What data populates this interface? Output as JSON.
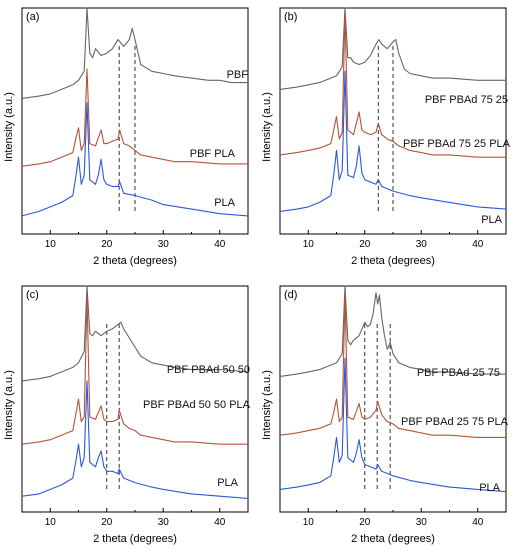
{
  "chart_data": [
    {
      "panel": "(a)",
      "type": "line",
      "xlabel": "2 theta (degrees)",
      "ylabel": "Intensity (a.u.)",
      "xlim": [
        5,
        45
      ],
      "xticks": [
        10,
        20,
        30,
        40
      ],
      "dashed_lines_x": [
        22.2,
        25.0
      ],
      "series": [
        {
          "name": "PBF",
          "color": "#666666",
          "x": [
            5,
            8,
            10,
            12,
            14,
            15,
            16,
            16.5,
            17,
            17.5,
            18,
            19,
            20,
            21,
            22,
            23,
            24,
            24.5,
            25,
            26,
            28,
            30,
            32,
            35,
            38,
            40,
            42,
            45
          ],
          "y": [
            0.6,
            0.61,
            0.62,
            0.64,
            0.66,
            0.68,
            0.72,
            1.0,
            0.8,
            0.78,
            0.82,
            0.79,
            0.8,
            0.82,
            0.86,
            0.83,
            0.86,
            0.91,
            0.86,
            0.75,
            0.72,
            0.71,
            0.7,
            0.69,
            0.68,
            0.68,
            0.67,
            0.67
          ]
        },
        {
          "name": "PBF PLA",
          "color": "#b5533a",
          "x": [
            5,
            8,
            10,
            12,
            14,
            14.5,
            15,
            15.5,
            16,
            16.5,
            17,
            18,
            19,
            19.5,
            20,
            21,
            22,
            22.3,
            23,
            24,
            25,
            26,
            28,
            30,
            32,
            35,
            40,
            45
          ],
          "y": [
            0.3,
            0.31,
            0.32,
            0.34,
            0.36,
            0.42,
            0.47,
            0.37,
            0.4,
            0.73,
            0.4,
            0.39,
            0.46,
            0.4,
            0.4,
            0.41,
            0.42,
            0.46,
            0.4,
            0.39,
            0.37,
            0.35,
            0.34,
            0.33,
            0.32,
            0.32,
            0.31,
            0.31
          ]
        },
        {
          "name": "PLA",
          "color": "#2a5ad6",
          "x": [
            5,
            8,
            10,
            12,
            14,
            14.5,
            15,
            15.5,
            16,
            16.5,
            17,
            18,
            18.5,
            19,
            19.5,
            20,
            21,
            22,
            22.3,
            23,
            25,
            28,
            30,
            35,
            40,
            45
          ],
          "y": [
            0.08,
            0.1,
            0.12,
            0.14,
            0.17,
            0.25,
            0.34,
            0.22,
            0.26,
            0.58,
            0.24,
            0.22,
            0.26,
            0.33,
            0.24,
            0.22,
            0.21,
            0.21,
            0.23,
            0.18,
            0.17,
            0.15,
            0.13,
            0.11,
            0.09,
            0.08
          ]
        }
      ]
    },
    {
      "panel": "(b)",
      "type": "line",
      "xlabel": "2 theta (degrees)",
      "ylabel": "Intensity (a.u.)",
      "xlim": [
        5,
        45
      ],
      "xticks": [
        10,
        20,
        30,
        40
      ],
      "dashed_lines_x": [
        22.4,
        25.0
      ],
      "series": [
        {
          "name": "PBF PBAd 75 25",
          "color": "#666666",
          "x": [
            5,
            8,
            10,
            12,
            14,
            15,
            16,
            16.5,
            17,
            17.5,
            18,
            19,
            20,
            21,
            22,
            22.5,
            23,
            24,
            25,
            25.5,
            26,
            27,
            28,
            30,
            32,
            35,
            40,
            45
          ],
          "y": [
            0.64,
            0.65,
            0.66,
            0.67,
            0.69,
            0.7,
            0.74,
            1.0,
            0.78,
            0.78,
            0.76,
            0.75,
            0.76,
            0.79,
            0.84,
            0.86,
            0.84,
            0.82,
            0.85,
            0.86,
            0.8,
            0.73,
            0.71,
            0.7,
            0.69,
            0.69,
            0.68,
            0.68
          ]
        },
        {
          "name": "PBF PBAd 75 25 PLA",
          "color": "#b5533a",
          "x": [
            5,
            8,
            10,
            12,
            14,
            14.5,
            15,
            15.5,
            16,
            16.5,
            17,
            18,
            19,
            19.5,
            20,
            21,
            22,
            22.4,
            23,
            24,
            25,
            26,
            28,
            30,
            32,
            35,
            40,
            45
          ],
          "y": [
            0.35,
            0.36,
            0.37,
            0.38,
            0.4,
            0.46,
            0.52,
            0.42,
            0.45,
            0.98,
            0.46,
            0.44,
            0.54,
            0.46,
            0.45,
            0.44,
            0.45,
            0.49,
            0.44,
            0.42,
            0.41,
            0.39,
            0.37,
            0.36,
            0.35,
            0.35,
            0.34,
            0.34
          ]
        },
        {
          "name": "PLA",
          "color": "#2a5ad6",
          "x": [
            5,
            8,
            10,
            12,
            14,
            14.5,
            15,
            15.5,
            16,
            16.5,
            17,
            18,
            18.5,
            19,
            19.5,
            20,
            21,
            22,
            22.4,
            23,
            25,
            28,
            30,
            35,
            40,
            45
          ],
          "y": [
            0.1,
            0.11,
            0.12,
            0.14,
            0.17,
            0.26,
            0.37,
            0.24,
            0.28,
            0.72,
            0.26,
            0.25,
            0.3,
            0.39,
            0.27,
            0.24,
            0.23,
            0.22,
            0.24,
            0.21,
            0.19,
            0.17,
            0.16,
            0.14,
            0.12,
            0.11
          ]
        }
      ]
    },
    {
      "panel": "(c)",
      "type": "line",
      "xlabel": "2 theta (degrees)",
      "ylabel": "Intensity (a.u.)",
      "xlim": [
        5,
        45
      ],
      "xticks": [
        10,
        20,
        30,
        40
      ],
      "dashed_lines_x": [
        20.0,
        22.2
      ],
      "series": [
        {
          "name": "PBF PBAd 50 50",
          "color": "#666666",
          "x": [
            5,
            8,
            10,
            12,
            14,
            15,
            16,
            16.5,
            17,
            17.5,
            18,
            19,
            20,
            21,
            22,
            22.5,
            23,
            24,
            25,
            26,
            28,
            30,
            32,
            35,
            40,
            45
          ],
          "y": [
            0.58,
            0.59,
            0.6,
            0.62,
            0.64,
            0.66,
            0.71,
            1.0,
            0.79,
            0.78,
            0.8,
            0.78,
            0.8,
            0.81,
            0.83,
            0.84,
            0.81,
            0.77,
            0.73,
            0.69,
            0.66,
            0.65,
            0.64,
            0.63,
            0.63,
            0.62
          ]
        },
        {
          "name": "PBF PBAd 50 50 PLA",
          "color": "#b5533a",
          "x": [
            5,
            8,
            10,
            12,
            14,
            14.5,
            15,
            15.5,
            16,
            16.5,
            17,
            18,
            19,
            19.5,
            20,
            21,
            22,
            22.2,
            23,
            24,
            25,
            26,
            28,
            30,
            32,
            35,
            40,
            45
          ],
          "y": [
            0.3,
            0.31,
            0.32,
            0.34,
            0.36,
            0.43,
            0.5,
            0.4,
            0.42,
            0.95,
            0.42,
            0.41,
            0.47,
            0.41,
            0.4,
            0.4,
            0.41,
            0.45,
            0.39,
            0.37,
            0.36,
            0.34,
            0.33,
            0.32,
            0.31,
            0.31,
            0.3,
            0.3
          ]
        },
        {
          "name": "PLA",
          "color": "#2a5ad6",
          "x": [
            5,
            8,
            10,
            12,
            14,
            14.5,
            15,
            15.5,
            16,
            16.5,
            17,
            18,
            18.5,
            19,
            19.5,
            20,
            21,
            22,
            22.2,
            23,
            25,
            28,
            30,
            35,
            40,
            45
          ],
          "y": [
            0.07,
            0.08,
            0.1,
            0.12,
            0.15,
            0.22,
            0.3,
            0.2,
            0.24,
            0.58,
            0.22,
            0.2,
            0.24,
            0.27,
            0.2,
            0.18,
            0.18,
            0.17,
            0.19,
            0.15,
            0.13,
            0.11,
            0.1,
            0.08,
            0.07,
            0.06
          ]
        }
      ]
    },
    {
      "panel": "(d)",
      "type": "line",
      "xlabel": "2 theta (degrees)",
      "ylabel": "Intensity (a.u.)",
      "xlim": [
        5,
        45
      ],
      "xticks": [
        10,
        20,
        30,
        40
      ],
      "dashed_lines_x": [
        20.0,
        22.2,
        24.5
      ],
      "series": [
        {
          "name": "PBF PBAd 25 75",
          "color": "#666666",
          "x": [
            5,
            8,
            10,
            12,
            14,
            15,
            16,
            16.5,
            17,
            17.5,
            18,
            19,
            20,
            20.5,
            21,
            21.5,
            22,
            22.3,
            22.6,
            23,
            23.5,
            24,
            24.5,
            25,
            26,
            28,
            30,
            32,
            35,
            40,
            45
          ],
          "y": [
            0.6,
            0.61,
            0.62,
            0.63,
            0.65,
            0.66,
            0.7,
            1.0,
            0.76,
            0.74,
            0.76,
            0.78,
            0.84,
            0.82,
            0.83,
            0.88,
            0.97,
            0.92,
            0.96,
            0.86,
            0.78,
            0.72,
            0.75,
            0.7,
            0.66,
            0.64,
            0.63,
            0.62,
            0.62,
            0.61,
            0.61
          ]
        },
        {
          "name": "PBF PBAd 25 75 PLA",
          "color": "#b5533a",
          "x": [
            5,
            8,
            10,
            12,
            14,
            14.5,
            15,
            15.5,
            16,
            16.5,
            17,
            18,
            19,
            19.5,
            20,
            21,
            22,
            22.3,
            23,
            24,
            25,
            26,
            28,
            30,
            32,
            35,
            40,
            45
          ],
          "y": [
            0.34,
            0.35,
            0.36,
            0.37,
            0.39,
            0.44,
            0.5,
            0.4,
            0.42,
            0.96,
            0.42,
            0.41,
            0.48,
            0.42,
            0.41,
            0.42,
            0.45,
            0.49,
            0.43,
            0.4,
            0.39,
            0.37,
            0.36,
            0.35,
            0.34,
            0.34,
            0.33,
            0.33
          ]
        },
        {
          "name": "PLA",
          "color": "#2a5ad6",
          "x": [
            5,
            8,
            10,
            12,
            14,
            14.5,
            15,
            15.5,
            16,
            16.5,
            17,
            18,
            18.5,
            19,
            19.5,
            20,
            21,
            22,
            22.3,
            23,
            25,
            28,
            30,
            35,
            40,
            45
          ],
          "y": [
            0.1,
            0.11,
            0.12,
            0.13,
            0.16,
            0.24,
            0.33,
            0.22,
            0.25,
            0.68,
            0.24,
            0.22,
            0.26,
            0.32,
            0.24,
            0.21,
            0.2,
            0.19,
            0.21,
            0.18,
            0.16,
            0.14,
            0.13,
            0.11,
            0.1,
            0.09
          ]
        }
      ]
    }
  ]
}
